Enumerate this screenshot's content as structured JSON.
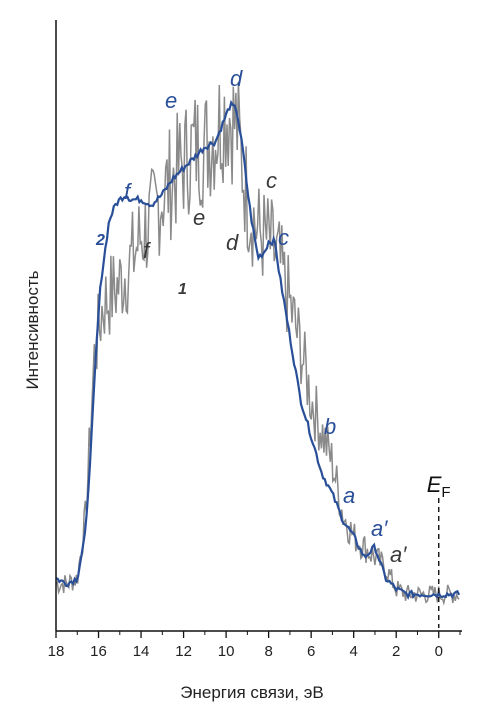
{
  "chart_data": {
    "type": "line",
    "xlabel": "Энергия связи, эВ",
    "ylabel": "Интенсивность",
    "xlim": [
      18,
      -1
    ],
    "ylim": [
      0,
      100
    ],
    "x_ticks": [
      "18",
      "16",
      "14",
      "12",
      "10",
      "8",
      "6",
      "4",
      "2",
      "0"
    ],
    "fermi_level": {
      "x": 0,
      "label": "E",
      "subscript": "F"
    },
    "colors": {
      "curve_1": "#8a8a8a",
      "curve_2": "#2a4f99",
      "axis": "#111111"
    },
    "series": [
      {
        "name": "1",
        "x": [
          18,
          17.5,
          17,
          16.6,
          16.2,
          15.8,
          15.4,
          15,
          14.5,
          14,
          13.5,
          13,
          12.5,
          12,
          11.5,
          11,
          10.5,
          10,
          9.5,
          9,
          8.5,
          8,
          7.5,
          7,
          6.5,
          6,
          5.5,
          5,
          4.5,
          4,
          3.5,
          3,
          2.5,
          2,
          1.5,
          1,
          0.5,
          0,
          -0.5,
          -1
        ],
        "y": [
          5,
          5,
          6,
          18,
          48,
          58,
          60,
          62,
          66,
          71,
          74,
          79,
          82,
          85,
          88,
          88,
          91,
          95,
          92,
          78,
          72,
          70,
          66,
          58,
          50,
          40,
          34,
          28,
          18,
          14,
          12,
          10,
          8,
          4,
          3,
          3,
          3,
          3,
          3,
          3
        ]
      },
      {
        "name": "2",
        "x": [
          18,
          17.5,
          17,
          16.6,
          16.3,
          16.1,
          15.9,
          15.7,
          15.5,
          15.2,
          15,
          14.7,
          14.5,
          14,
          13.5,
          13,
          12.5,
          12,
          11.5,
          11,
          10.5,
          10.2,
          10,
          9.8,
          9.5,
          9.2,
          9,
          8.8,
          8.5,
          8.2,
          8,
          7.7,
          7.5,
          7,
          6.5,
          6,
          5.5,
          5,
          4.5,
          4,
          3.5,
          3,
          2.5,
          2,
          1.5,
          1,
          0.5,
          0,
          -0.5,
          -1
        ],
        "y": [
          6,
          5,
          6,
          15,
          35,
          50,
          62,
          68,
          74,
          77,
          78,
          79,
          78,
          78,
          77,
          79,
          82,
          84,
          86,
          88,
          89,
          92,
          94,
          96,
          95,
          87,
          80,
          74,
          67,
          68,
          70,
          70,
          64,
          52,
          40,
          33,
          26,
          22,
          17,
          14,
          10,
          12,
          6,
          4,
          3,
          3,
          3,
          3,
          3,
          3
        ]
      }
    ],
    "annotations": {
      "curve_2": [
        "f",
        "e",
        "d",
        "c",
        "b",
        "a",
        "a′"
      ],
      "curve_1": [
        "f",
        "e",
        "d",
        "c",
        "a′"
      ],
      "curve_numbers": [
        "2",
        "1"
      ]
    }
  }
}
